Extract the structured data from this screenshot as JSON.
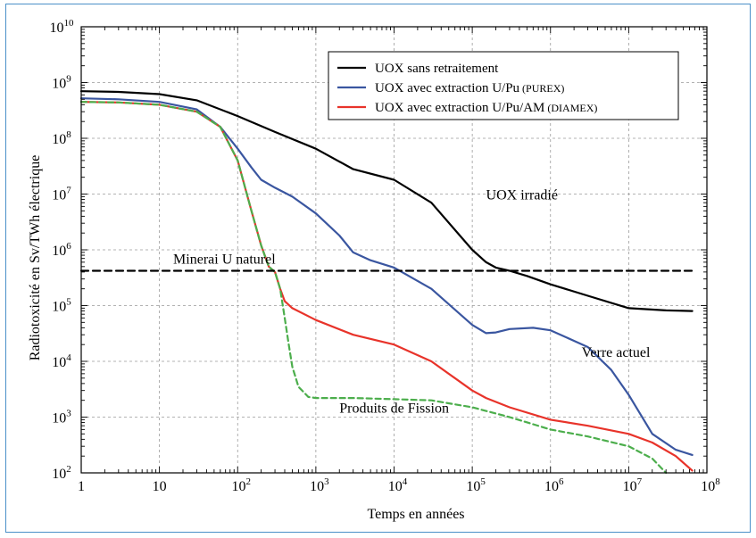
{
  "chart_data": {
    "type": "line",
    "title": "",
    "xlabel": "Temps en années",
    "ylabel": "Radiotoxicité en Sv/TWh  électrique",
    "xscale": "log",
    "yscale": "log",
    "xlim": [
      1,
      100000000
    ],
    "ylim": [
      100,
      10000000000
    ],
    "grid": true,
    "legend_position": "top-right",
    "x_ticks": [
      {
        "value": 1,
        "base": "1",
        "exp": ""
      },
      {
        "value": 10,
        "base": "10",
        "exp": ""
      },
      {
        "value": 100,
        "base": "10",
        "exp": "2"
      },
      {
        "value": 1000,
        "base": "10",
        "exp": "3"
      },
      {
        "value": 10000,
        "base": "10",
        "exp": "4"
      },
      {
        "value": 100000,
        "base": "10",
        "exp": "5"
      },
      {
        "value": 1000000,
        "base": "10",
        "exp": "6"
      },
      {
        "value": 10000000,
        "base": "10",
        "exp": "7"
      },
      {
        "value": 100000000,
        "base": "10",
        "exp": "8"
      }
    ],
    "y_ticks": [
      {
        "value": 100,
        "base": "10",
        "exp": "2"
      },
      {
        "value": 1000,
        "base": "10",
        "exp": "3"
      },
      {
        "value": 10000,
        "base": "10",
        "exp": "4"
      },
      {
        "value": 100000,
        "base": "10",
        "exp": "5"
      },
      {
        "value": 1000000,
        "base": "10",
        "exp": "6"
      },
      {
        "value": 10000000,
        "base": "10",
        "exp": "7"
      },
      {
        "value": 100000000,
        "base": "10",
        "exp": "8"
      },
      {
        "value": 1000000000,
        "base": "10",
        "exp": "9"
      },
      {
        "value": 10000000000,
        "base": "10",
        "exp": "10"
      }
    ],
    "series": [
      {
        "name": "UOX sans retraitement",
        "label_main": "UOX sans retraitement",
        "label_small": "",
        "in_legend": true,
        "color": "#000000",
        "dash": "none",
        "x": [
          1,
          3,
          10,
          30,
          100,
          300,
          1000,
          3000,
          10000,
          30000,
          100000,
          150000,
          200000,
          300000,
          500000,
          1000000,
          3000000,
          10000000,
          30000000,
          65000000
        ],
        "y": [
          700000000,
          680000000,
          620000000,
          480000000,
          250000000,
          130000000,
          65000000,
          28000000,
          18000000,
          7000000,
          1000000,
          600000,
          480000,
          420000,
          340000,
          240000,
          150000,
          90000,
          82000,
          80000
        ]
      },
      {
        "name": "UOX avec extraction U/Pu (PUREX)",
        "label_main": "UOX avec extraction U/Pu",
        "label_small": "(PUREX)",
        "in_legend": true,
        "color": "#3a56a0",
        "dash": "none",
        "x": [
          1,
          3,
          10,
          30,
          60,
          100,
          150,
          200,
          300,
          500,
          1000,
          2000,
          3000,
          5000,
          10000,
          30000,
          100000,
          150000,
          200000,
          300000,
          600000,
          1000000,
          3000000,
          6000000,
          10000000,
          20000000,
          40000000,
          65000000
        ],
        "y": [
          520000000,
          500000000,
          450000000,
          330000000,
          160000000,
          65000000,
          30000000,
          18000000,
          13000000,
          9000000,
          4500000,
          1800000,
          900000,
          650000,
          480000,
          200000,
          45000,
          32000,
          33000,
          38000,
          40000,
          36000,
          18000,
          7000,
          2500,
          500,
          260,
          210
        ]
      },
      {
        "name": "UOX avec extraction U/Pu/AM (DIAMEX)",
        "label_main": "UOX avec extraction U/Pu/AM",
        "label_small": "(DIAMEX)",
        "in_legend": true,
        "color": "#e8332a",
        "dash": "none",
        "x": [
          1,
          3,
          10,
          30,
          60,
          100,
          150,
          200,
          250,
          300,
          350,
          400,
          500,
          1000,
          3000,
          10000,
          30000,
          100000,
          150000,
          300000,
          1000000,
          3000000,
          10000000,
          20000000,
          40000000,
          65000000
        ],
        "y": [
          450000000,
          440000000,
          400000000,
          300000000,
          160000000,
          40000000,
          5000000,
          1200000,
          500000,
          400000,
          200000,
          120000,
          90000,
          55000,
          30000,
          20000,
          10000,
          3000,
          2200,
          1500,
          900,
          700,
          500,
          350,
          200,
          110
        ]
      },
      {
        "name": "Produits de Fission",
        "label_main": "Produits de Fission",
        "label_small": "",
        "in_legend": false,
        "color": "#4cae4c",
        "dash": "6 4",
        "x": [
          1,
          3,
          10,
          30,
          60,
          100,
          150,
          200,
          250,
          300,
          350,
          400,
          450,
          500,
          600,
          800,
          1000,
          3000,
          10000,
          30000,
          100000,
          300000,
          1000000,
          3000000,
          10000000,
          20000000,
          30000000
        ],
        "y": [
          450000000,
          440000000,
          400000000,
          300000000,
          160000000,
          40000000,
          5000000,
          1200000,
          500000,
          400000,
          200000,
          60000,
          20000,
          8000,
          3500,
          2300,
          2200,
          2200,
          2100,
          2000,
          1500,
          1000,
          600,
          450,
          300,
          180,
          100
        ]
      },
      {
        "name": "Minerai U naturel",
        "label_main": "Minerai U naturel",
        "label_small": "",
        "in_legend": false,
        "color": "#000000",
        "dash": "8 5",
        "x": [
          1,
          65000000
        ],
        "y": [
          420000,
          420000
        ]
      }
    ],
    "annotations": [
      {
        "text": "UOX irradié",
        "x": 150000,
        "y": 8000000
      },
      {
        "text": "Verre actuel",
        "x": 2500000,
        "y": 12000
      },
      {
        "text": "Produits de Fission",
        "x": 2000,
        "y": 1200
      },
      {
        "text": "Minerai U naturel",
        "x": 15,
        "y": 560000
      }
    ]
  }
}
